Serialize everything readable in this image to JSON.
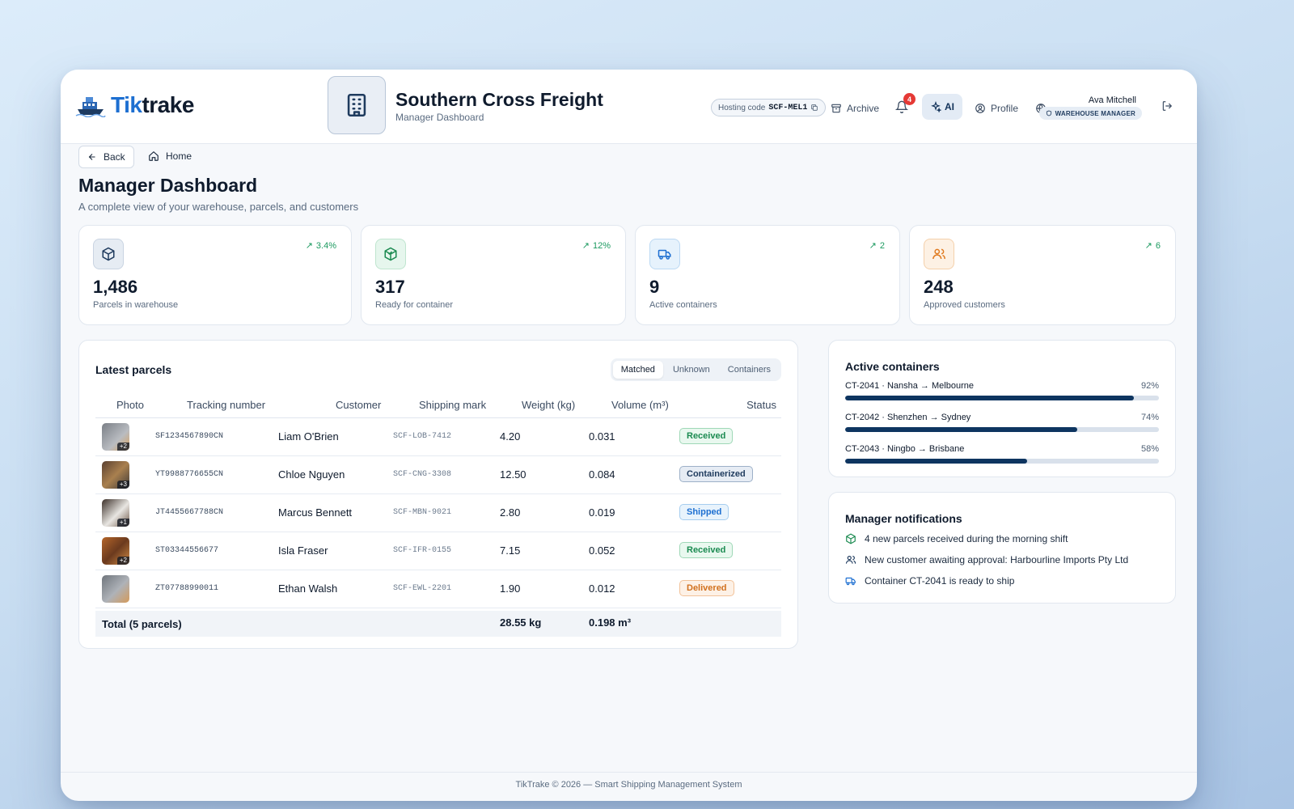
{
  "brand": {
    "name_part1": "Tik",
    "name_part2": "trake"
  },
  "company": {
    "name": "Southern Cross Freight",
    "subtitle": "Manager Dashboard"
  },
  "header": {
    "hosting_label": "Hosting code",
    "hosting_code": "SCF-MEL1",
    "archive": "Archive",
    "notification_count": "4",
    "ai": "AI",
    "profile": "Profile",
    "user_name": "Ava Mitchell",
    "user_role": "WAREHOUSE MANAGER"
  },
  "nav": {
    "back": "Back",
    "home": "Home"
  },
  "page": {
    "title": "Manager Dashboard",
    "subtitle": "A complete view of your warehouse, parcels, and customers"
  },
  "stats": [
    {
      "value": "1,486",
      "label": "Parcels in warehouse",
      "trend": "3.4%",
      "icon": "box-icon",
      "color": "#1f3b5e"
    },
    {
      "value": "317",
      "label": "Ready for container",
      "trend": "12%",
      "icon": "package-check-icon",
      "color": "#1a8a50"
    },
    {
      "value": "9",
      "label": "Active containers",
      "trend": "2",
      "icon": "truck-icon",
      "color": "#1d6fd1"
    },
    {
      "value": "248",
      "label": "Approved customers",
      "trend": "6",
      "icon": "users-icon",
      "color": "#e07a1f"
    }
  ],
  "parcels": {
    "title": "Latest parcels",
    "tabs": [
      "Matched",
      "Unknown",
      "Containers"
    ],
    "active_tab": "Matched",
    "columns": [
      "Photo",
      "Tracking number",
      "Customer",
      "Shipping mark",
      "Weight (kg)",
      "Volume (m³)",
      "Status"
    ],
    "rows": [
      {
        "photo_count": "+2",
        "tracking": "SF1234567890CN",
        "customer": "Liam O'Brien",
        "mark": "SCF-LOB-7412",
        "weight": "4.20",
        "volume": "0.031",
        "status": "Received"
      },
      {
        "photo_count": "+3",
        "tracking": "YT9988776655CN",
        "customer": "Chloe Nguyen",
        "mark": "SCF-CNG-3308",
        "weight": "12.50",
        "volume": "0.084",
        "status": "Containerized"
      },
      {
        "photo_count": "+1",
        "tracking": "JT4455667788CN",
        "customer": "Marcus Bennett",
        "mark": "SCF-MBN-9021",
        "weight": "2.80",
        "volume": "0.019",
        "status": "Shipped"
      },
      {
        "photo_count": "+2",
        "tracking": "ST03344556677",
        "customer": "Isla Fraser",
        "mark": "SCF-IFR-0155",
        "weight": "7.15",
        "volume": "0.052",
        "status": "Received"
      },
      {
        "photo_count": "",
        "tracking": "ZT07788990011",
        "customer": "Ethan Walsh",
        "mark": "SCF-EWL-2201",
        "weight": "1.90",
        "volume": "0.012",
        "status": "Delivered"
      }
    ],
    "total": {
      "label": "Total (5 parcels)",
      "weight": "28.55 kg",
      "volume": "0.198 m³"
    }
  },
  "containers": {
    "title": "Active containers",
    "items": [
      {
        "name": "CT-2041 · Nansha → Melbourne",
        "percent": 92
      },
      {
        "name": "CT-2042 · Shenzhen → Sydney",
        "percent": 74
      },
      {
        "name": "CT-2043 · Ningbo → Brisbane",
        "percent": 58
      }
    ]
  },
  "notifications": {
    "title": "Manager notifications",
    "items": [
      {
        "icon": "package-check-icon",
        "text": "4 new parcels received during the morning shift",
        "color": "#1a8a50"
      },
      {
        "icon": "users-icon",
        "text": "New customer awaiting approval: Harbourline Imports Pty Ltd",
        "color": "#1f3b5e"
      },
      {
        "icon": "truck-icon",
        "text": "Container CT-2041 is ready to ship",
        "color": "#1d6fd1"
      }
    ]
  },
  "footer": {
    "text": "TikTrake © 2026 — Smart Shipping Management System"
  }
}
